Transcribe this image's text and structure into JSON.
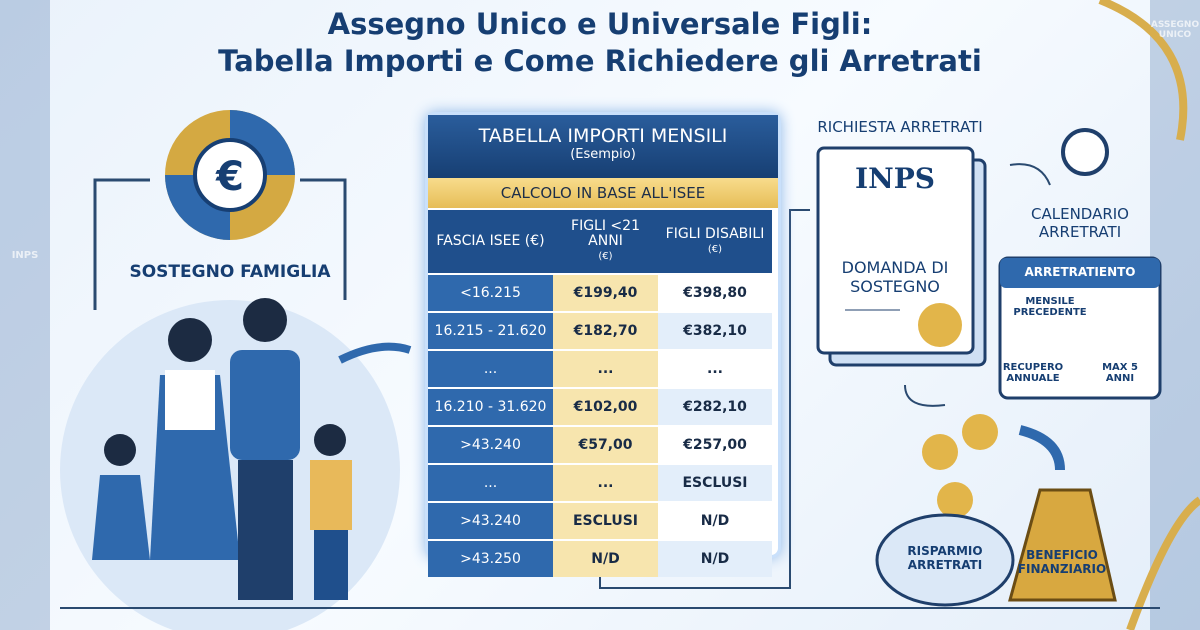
{
  "header": {
    "title_line1": "Assegno Unico e Universale Figli:",
    "title_line2": "Tabella Importi e Come Richiedere gli Arretrati"
  },
  "watermark": {
    "brand": "INPS",
    "program": "ASSEGNO UNICO"
  },
  "left": {
    "label": "SOSTEGNO FAMIGLIA"
  },
  "table": {
    "title": "TABELLA IMPORTI MENSILI",
    "subtitle": "(Esempio)",
    "band": "CALCOLO IN BASE ALL'ISEE",
    "headers": [
      {
        "label": "FASCIA ISEE (€)"
      },
      {
        "label": "FIGLI <21 ANNI",
        "unit": "(€)"
      },
      {
        "label": "FIGLI DISABILI",
        "unit": "(€)"
      }
    ],
    "rows": [
      [
        "<16.215",
        "€199,40",
        "€398,80"
      ],
      [
        "16.215 - 21.620",
        "€182,70",
        "€382,10"
      ],
      [
        "...",
        "...",
        "..."
      ],
      [
        "16.210 - 31.620",
        "€102,00",
        "€282,10"
      ],
      [
        ">43.240",
        "€57,00",
        "€257,00"
      ],
      [
        "...",
        "...",
        "ESCLUSI"
      ],
      [
        ">43.240",
        "ESCLUSI",
        "N/D"
      ],
      [
        ">43.250",
        "N/D",
        "N/D"
      ]
    ]
  },
  "right": {
    "title": "RICHIESTA ARRETRATI",
    "doc_logo": "INPS",
    "doc_text": "DOMANDA DI SOSTEGNO",
    "calendar_title": "CALENDARIO ARRETRATI",
    "calendar_header": "ARRETRATIENTO",
    "calendar_row": "MENSILE PRECEDENTE",
    "calendar_left": "RECUPERO ANNUALE",
    "calendar_right": "MAX 5 ANNI",
    "piggy": "RISPARMIO ARRETRATI",
    "bag": "BENEFICIO FINANZIARIO"
  }
}
